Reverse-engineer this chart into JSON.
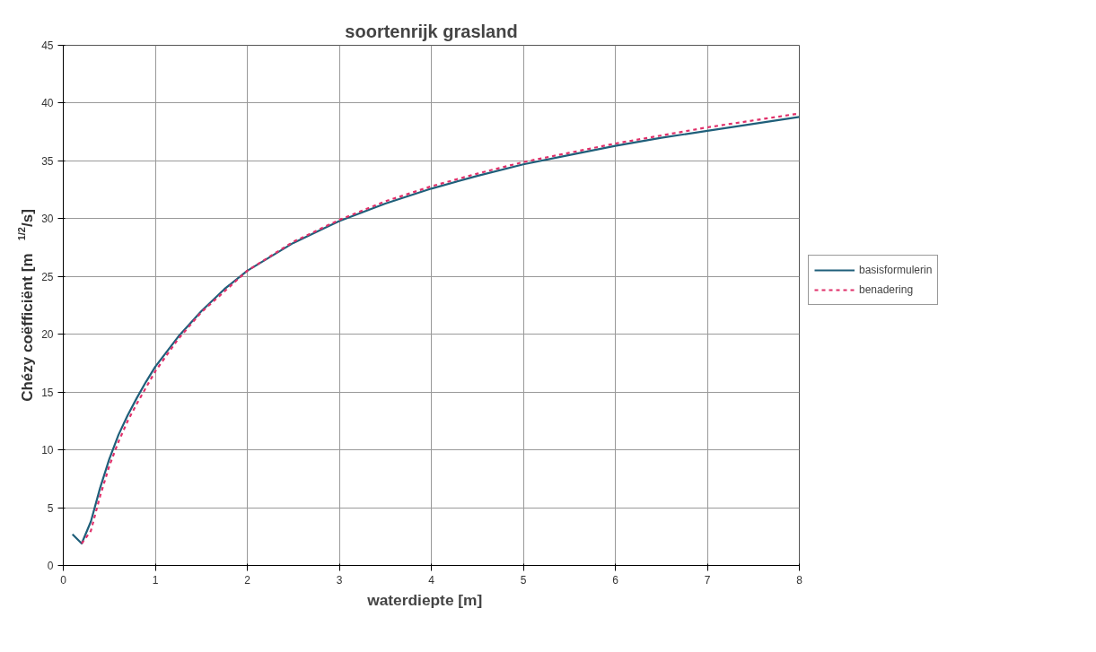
{
  "chart_data": {
    "type": "line",
    "title": "soortenrijk grasland",
    "xlabel": "waterdiepte    [m]",
    "ylabel": "Chézy coëfficiënt    [m$^{1/2}$/s]",
    "xlim": [
      0,
      8
    ],
    "ylim": [
      0,
      45
    ],
    "xticks": [
      0,
      1,
      2,
      3,
      4,
      5,
      6,
      7,
      8
    ],
    "yticks": [
      0,
      5,
      10,
      15,
      20,
      25,
      30,
      35,
      40,
      45
    ],
    "grid": true,
    "legend": "right",
    "series": [
      {
        "name": "basisformulerin",
        "color": "#1f5f7a",
        "line_style": "solid",
        "x": [
          0.1,
          0.2,
          0.3,
          0.4,
          0.5,
          0.6,
          0.7,
          0.8,
          0.9,
          1.0,
          1.25,
          1.5,
          1.75,
          2,
          2.5,
          3,
          3.5,
          4,
          4.5,
          5,
          5.5,
          6,
          6.5,
          7,
          7.5,
          8
        ],
        "values": [
          2.7,
          1.9,
          3.8,
          6.7,
          9.2,
          11.3,
          13.0,
          14.5,
          15.9,
          17.2,
          19.8,
          22.0,
          23.9,
          25.5,
          27.9,
          29.8,
          31.3,
          32.6,
          33.7,
          34.7,
          35.5,
          36.3,
          37.0,
          37.6,
          38.2,
          38.8
        ]
      },
      {
        "name": "benadering",
        "color": "#e0306a",
        "line_style": "dashed",
        "x": [
          0.2,
          0.3,
          0.4,
          0.5,
          0.6,
          0.7,
          0.8,
          0.9,
          1.0,
          1.25,
          1.5,
          2,
          2.5,
          3,
          3.5,
          4,
          4.5,
          5,
          5.5,
          6,
          6.5,
          7,
          7.5,
          8
        ],
        "values": [
          1.9,
          3.0,
          6.0,
          8.6,
          10.7,
          12.5,
          14.0,
          15.4,
          16.8,
          19.6,
          21.9,
          25.5,
          28.0,
          29.9,
          31.5,
          32.8,
          33.9,
          34.9,
          35.7,
          36.5,
          37.2,
          37.9,
          38.5,
          39.1
        ]
      }
    ]
  }
}
